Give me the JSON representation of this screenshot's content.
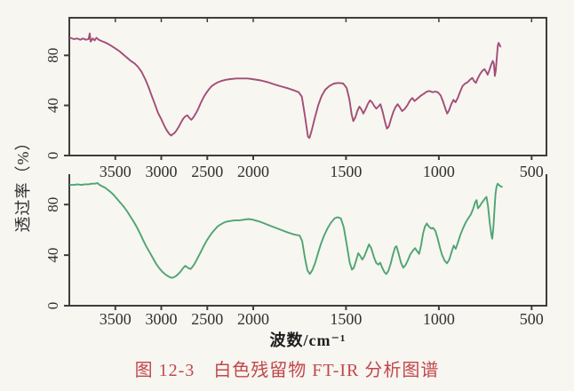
{
  "figure": {
    "y_axis_label": "透过率（%）",
    "x_axis_label": "波数/cm⁻¹",
    "caption": "图 12-3　白色残留物 FT-IR 分析图谱",
    "caption_color": "#c2474b",
    "axis_color": "#3f3d3b"
  },
  "chart_data": [
    {
      "id": "upper-spectrum",
      "type": "line",
      "title": "",
      "series_name": "白色残留物 FT-IR 谱（上，品红色曲线）",
      "color": "#a34d78",
      "xlabel": "波数/cm⁻¹",
      "ylabel": "透过率（%）",
      "x_ticks": [
        3500,
        3000,
        2500,
        2000,
        1500,
        1000,
        500
      ],
      "y_ticks": [
        0,
        40,
        80
      ],
      "x_range": [
        4000,
        420
      ],
      "x_scale_break": 2000,
      "ylim": [
        0,
        110
      ],
      "grid": false,
      "legend": "none",
      "points": [
        [
          3990,
          94
        ],
        [
          3950,
          93
        ],
        [
          3915,
          93.5
        ],
        [
          3880,
          92.5
        ],
        [
          3850,
          93.5
        ],
        [
          3820,
          92.5
        ],
        [
          3790,
          93
        ],
        [
          3778,
          97.5
        ],
        [
          3768,
          91
        ],
        [
          3745,
          93.5
        ],
        [
          3725,
          92
        ],
        [
          3705,
          94
        ],
        [
          3680,
          92.5
        ],
        [
          3650,
          91.5
        ],
        [
          3615,
          90.5
        ],
        [
          3575,
          89
        ],
        [
          3530,
          87
        ],
        [
          3490,
          85
        ],
        [
          3450,
          83
        ],
        [
          3410,
          80.5
        ],
        [
          3370,
          78
        ],
        [
          3330,
          75.5
        ],
        [
          3290,
          73.5
        ],
        [
          3255,
          71
        ],
        [
          3215,
          67
        ],
        [
          3175,
          61
        ],
        [
          3140,
          55
        ],
        [
          3105,
          48
        ],
        [
          3070,
          41
        ],
        [
          3035,
          34
        ],
        [
          3000,
          29
        ],
        [
          2965,
          23.5
        ],
        [
          2935,
          19.5
        ],
        [
          2910,
          17
        ],
        [
          2892,
          16
        ],
        [
          2875,
          17
        ],
        [
          2855,
          18
        ],
        [
          2835,
          20
        ],
        [
          2810,
          23
        ],
        [
          2785,
          26.5
        ],
        [
          2760,
          29.5
        ],
        [
          2735,
          31.5
        ],
        [
          2715,
          32
        ],
        [
          2695,
          30
        ],
        [
          2672,
          28.5
        ],
        [
          2650,
          30.5
        ],
        [
          2625,
          33.5
        ],
        [
          2600,
          37
        ],
        [
          2570,
          42
        ],
        [
          2540,
          46.5
        ],
        [
          2510,
          50
        ],
        [
          2480,
          53
        ],
        [
          2450,
          55.5
        ],
        [
          2420,
          57
        ],
        [
          2385,
          58.5
        ],
        [
          2350,
          59.5
        ],
        [
          2300,
          60.5
        ],
        [
          2250,
          61
        ],
        [
          2180,
          61.5
        ],
        [
          2120,
          61.5
        ],
        [
          2060,
          61.5
        ],
        [
          2010,
          61
        ],
        [
          1960,
          60
        ],
        [
          1920,
          58.5
        ],
        [
          1880,
          56.5
        ],
        [
          1845,
          55
        ],
        [
          1810,
          53.5
        ],
        [
          1780,
          52
        ],
        [
          1755,
          50.5
        ],
        [
          1738,
          47
        ],
        [
          1722,
          32
        ],
        [
          1705,
          15
        ],
        [
          1697,
          14
        ],
        [
          1685,
          20
        ],
        [
          1668,
          30
        ],
        [
          1650,
          40
        ],
        [
          1632,
          47.5
        ],
        [
          1612,
          52.5
        ],
        [
          1590,
          55.5
        ],
        [
          1565,
          57.5
        ],
        [
          1540,
          58
        ],
        [
          1515,
          57.5
        ],
        [
          1497,
          54
        ],
        [
          1482,
          45
        ],
        [
          1470,
          33
        ],
        [
          1461,
          27.5
        ],
        [
          1450,
          30.5
        ],
        [
          1438,
          36
        ],
        [
          1428,
          39
        ],
        [
          1418,
          37
        ],
        [
          1407,
          33.5
        ],
        [
          1395,
          37
        ],
        [
          1383,
          41
        ],
        [
          1371,
          44
        ],
        [
          1360,
          42.5
        ],
        [
          1348,
          39.5
        ],
        [
          1337,
          37.5
        ],
        [
          1326,
          39
        ],
        [
          1315,
          41
        ],
        [
          1303,
          35
        ],
        [
          1290,
          27
        ],
        [
          1280,
          21.5
        ],
        [
          1270,
          23
        ],
        [
          1258,
          29
        ],
        [
          1246,
          34.5
        ],
        [
          1234,
          38.5
        ],
        [
          1222,
          41
        ],
        [
          1210,
          38.5
        ],
        [
          1198,
          35.5
        ],
        [
          1185,
          37
        ],
        [
          1170,
          40
        ],
        [
          1155,
          44
        ],
        [
          1143,
          46
        ],
        [
          1131,
          43.5
        ],
        [
          1119,
          45
        ],
        [
          1107,
          46.5
        ],
        [
          1095,
          48
        ],
        [
          1080,
          49.5
        ],
        [
          1065,
          51
        ],
        [
          1050,
          51.5
        ],
        [
          1035,
          50.5
        ],
        [
          1020,
          51
        ],
        [
          1005,
          50.5
        ],
        [
          990,
          48
        ],
        [
          977,
          43
        ],
        [
          965,
          37.5
        ],
        [
          955,
          33.5
        ],
        [
          945,
          36
        ],
        [
          933,
          41
        ],
        [
          921,
          44.5
        ],
        [
          910,
          42.5
        ],
        [
          898,
          46
        ],
        [
          885,
          51
        ],
        [
          872,
          55.5
        ],
        [
          858,
          57.5
        ],
        [
          845,
          58.5
        ],
        [
          832,
          60.5
        ],
        [
          820,
          62
        ],
        [
          810,
          59.5
        ],
        [
          800,
          58
        ],
        [
          790,
          61.5
        ],
        [
          778,
          65
        ],
        [
          766,
          67.5
        ],
        [
          754,
          69
        ],
        [
          745,
          67
        ],
        [
          737,
          64.5
        ],
        [
          728,
          68
        ],
        [
          718,
          72.5
        ],
        [
          709,
          75.5
        ],
        [
          703,
          73
        ],
        [
          698,
          63.5
        ],
        [
          693,
          68
        ],
        [
          687,
          79
        ],
        [
          682,
          88
        ],
        [
          678,
          90
        ],
        [
          673,
          88.5
        ],
        [
          668,
          87
        ]
      ]
    },
    {
      "id": "lower-spectrum",
      "type": "line",
      "title": "",
      "series_name": "白色残留物 FT-IR 谱（下，绿色曲线）",
      "color": "#4fa472",
      "xlabel": "波数/cm⁻¹",
      "ylabel": "透过率（%）",
      "x_ticks": [
        3500,
        3000,
        2500,
        2000,
        1500,
        1000,
        500
      ],
      "y_ticks": [
        0,
        40,
        80
      ],
      "x_range": [
        4000,
        420
      ],
      "x_scale_break": 2000,
      "ylim": [
        0,
        104
      ],
      "grid": false,
      "legend": "none",
      "points": [
        [
          3990,
          95.5
        ],
        [
          3950,
          95.5
        ],
        [
          3910,
          96
        ],
        [
          3870,
          95.5
        ],
        [
          3830,
          96
        ],
        [
          3790,
          96
        ],
        [
          3755,
          96.5
        ],
        [
          3720,
          96.5
        ],
        [
          3695,
          97
        ],
        [
          3670,
          95.5
        ],
        [
          3645,
          94.5
        ],
        [
          3615,
          93.5
        ],
        [
          3580,
          91.5
        ],
        [
          3545,
          89.5
        ],
        [
          3510,
          87
        ],
        [
          3475,
          84
        ],
        [
          3440,
          81
        ],
        [
          3405,
          78
        ],
        [
          3370,
          74.5
        ],
        [
          3335,
          70.5
        ],
        [
          3300,
          66.5
        ],
        [
          3265,
          62
        ],
        [
          3230,
          57
        ],
        [
          3195,
          51.5
        ],
        [
          3160,
          46.5
        ],
        [
          3125,
          42
        ],
        [
          3090,
          37.5
        ],
        [
          3055,
          33
        ],
        [
          3020,
          29.5
        ],
        [
          2990,
          27
        ],
        [
          2960,
          25
        ],
        [
          2930,
          23.5
        ],
        [
          2905,
          22.5
        ],
        [
          2885,
          22
        ],
        [
          2862,
          22.5
        ],
        [
          2840,
          23.5
        ],
        [
          2815,
          25
        ],
        [
          2790,
          27
        ],
        [
          2765,
          29.5
        ],
        [
          2740,
          31.5
        ],
        [
          2720,
          30.5
        ],
        [
          2700,
          29.5
        ],
        [
          2680,
          29
        ],
        [
          2658,
          31
        ],
        [
          2635,
          33.5
        ],
        [
          2610,
          37
        ],
        [
          2585,
          40.5
        ],
        [
          2560,
          44
        ],
        [
          2532,
          48
        ],
        [
          2505,
          51.5
        ],
        [
          2478,
          54.5
        ],
        [
          2450,
          57.5
        ],
        [
          2420,
          60
        ],
        [
          2390,
          62.5
        ],
        [
          2360,
          64
        ],
        [
          2325,
          65.5
        ],
        [
          2290,
          66.5
        ],
        [
          2250,
          67
        ],
        [
          2200,
          67.5
        ],
        [
          2150,
          67.5
        ],
        [
          2100,
          68
        ],
        [
          2050,
          68.5
        ],
        [
          2005,
          68
        ],
        [
          1965,
          66.5
        ],
        [
          1930,
          64.5
        ],
        [
          1895,
          62.5
        ],
        [
          1860,
          60.5
        ],
        [
          1825,
          58.5
        ],
        [
          1795,
          57
        ],
        [
          1770,
          56
        ],
        [
          1750,
          55.5
        ],
        [
          1736,
          51
        ],
        [
          1722,
          38
        ],
        [
          1708,
          28
        ],
        [
          1695,
          25
        ],
        [
          1682,
          28
        ],
        [
          1668,
          33
        ],
        [
          1652,
          41
        ],
        [
          1635,
          49
        ],
        [
          1618,
          55.5
        ],
        [
          1600,
          61
        ],
        [
          1582,
          65.5
        ],
        [
          1562,
          69
        ],
        [
          1545,
          70
        ],
        [
          1528,
          69
        ],
        [
          1512,
          62
        ],
        [
          1496,
          48
        ],
        [
          1480,
          34
        ],
        [
          1468,
          28.5
        ],
        [
          1458,
          30
        ],
        [
          1446,
          35.5
        ],
        [
          1434,
          41.5
        ],
        [
          1424,
          39.5
        ],
        [
          1412,
          36.5
        ],
        [
          1400,
          39.5
        ],
        [
          1388,
          44
        ],
        [
          1376,
          48.5
        ],
        [
          1364,
          45.5
        ],
        [
          1350,
          38.5
        ],
        [
          1338,
          34
        ],
        [
          1326,
          32.5
        ],
        [
          1316,
          34
        ],
        [
          1305,
          30
        ],
        [
          1293,
          26.5
        ],
        [
          1283,
          25
        ],
        [
          1272,
          27.5
        ],
        [
          1260,
          33
        ],
        [
          1248,
          40
        ],
        [
          1236,
          46
        ],
        [
          1228,
          47
        ],
        [
          1216,
          41
        ],
        [
          1204,
          34
        ],
        [
          1192,
          30
        ],
        [
          1180,
          32
        ],
        [
          1168,
          35.5
        ],
        [
          1154,
          40.5
        ],
        [
          1140,
          43.5
        ],
        [
          1128,
          45.5
        ],
        [
          1116,
          43
        ],
        [
          1106,
          41
        ],
        [
          1095,
          48
        ],
        [
          1085,
          57
        ],
        [
          1075,
          62.5
        ],
        [
          1065,
          65
        ],
        [
          1053,
          62.5
        ],
        [
          1040,
          61
        ],
        [
          1030,
          61.5
        ],
        [
          1018,
          59
        ],
        [
          1006,
          53
        ],
        [
          994,
          46
        ],
        [
          982,
          40
        ],
        [
          968,
          35.5
        ],
        [
          956,
          33.5
        ],
        [
          944,
          36.5
        ],
        [
          930,
          43
        ],
        [
          920,
          47.5
        ],
        [
          909,
          45
        ],
        [
          897,
          50
        ],
        [
          884,
          56
        ],
        [
          870,
          61
        ],
        [
          856,
          65.5
        ],
        [
          842,
          69
        ],
        [
          828,
          72
        ],
        [
          815,
          76.5
        ],
        [
          805,
          81.5
        ],
        [
          797,
          83.5
        ],
        [
          789,
          77
        ],
        [
          780,
          78.5
        ],
        [
          770,
          81
        ],
        [
          760,
          83
        ],
        [
          750,
          85
        ],
        [
          743,
          86
        ],
        [
          735,
          79
        ],
        [
          726,
          66
        ],
        [
          717,
          56
        ],
        [
          712,
          53
        ],
        [
          706,
          62
        ],
        [
          700,
          76
        ],
        [
          695,
          88
        ],
        [
          689,
          94
        ],
        [
          683,
          96.5
        ],
        [
          676,
          95.5
        ],
        [
          668,
          94.5
        ],
        [
          660,
          94
        ]
      ]
    }
  ]
}
